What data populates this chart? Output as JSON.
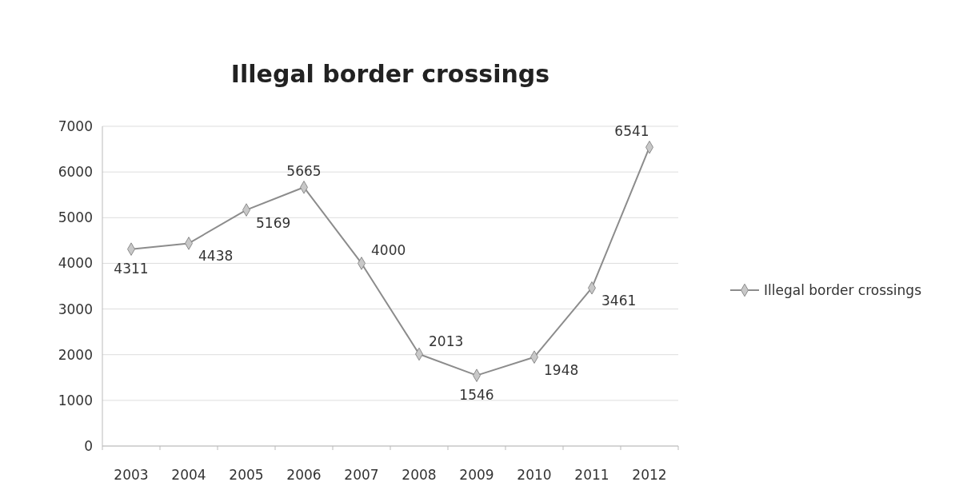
{
  "chart_data": {
    "type": "line",
    "title": "Illegal border crossings",
    "categories": [
      "2003",
      "2004",
      "2005",
      "2006",
      "2007",
      "2008",
      "2009",
      "2010",
      "2011",
      "2012"
    ],
    "series": [
      {
        "name": "Illegal border crossings",
        "color": "#8c8c8c",
        "values": [
          4311,
          4438,
          5169,
          5665,
          4000,
          2013,
          1546,
          1948,
          3461,
          6541
        ]
      }
    ],
    "ylim": [
      0,
      7000
    ],
    "yticks": [
      0,
      1000,
      2000,
      3000,
      4000,
      5000,
      6000,
      7000
    ],
    "grid": "y",
    "legend": "right",
    "marker": "diamond",
    "data_labels": true
  }
}
